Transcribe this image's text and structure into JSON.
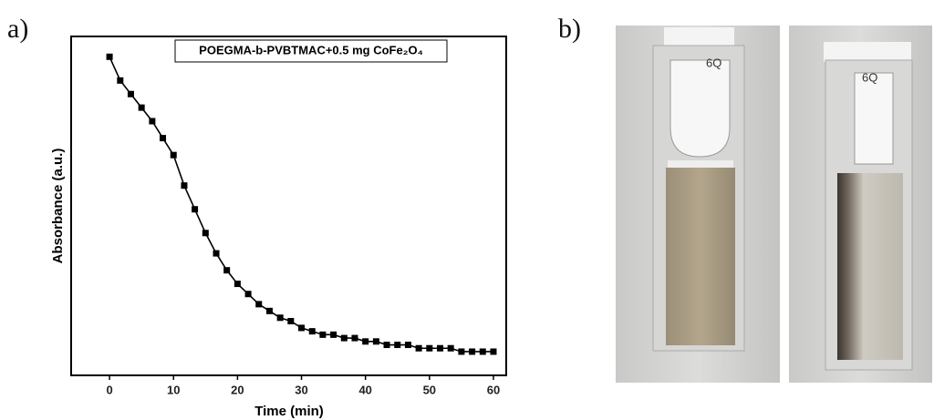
{
  "panel_labels": [
    "a)",
    "b)"
  ],
  "chart_data": {
    "type": "line",
    "xlabel": "Time (min)",
    "ylabel": "Absorbance (a.u.)",
    "x": [
      0,
      1.67,
      3.33,
      5,
      6.67,
      8.33,
      10,
      11.67,
      13.33,
      15,
      16.67,
      18.33,
      20,
      21.67,
      23.33,
      25,
      26.67,
      28.33,
      30,
      31.67,
      33.33,
      35,
      36.67,
      38.33,
      40,
      41.67,
      43.33,
      45,
      46.67,
      48.33,
      50,
      51.67,
      53.33,
      55,
      56.67,
      58.33,
      60
    ],
    "series": [
      {
        "name": "POEGMA-b-PVBTMAC+0.5 mg CoFe₂O₄",
        "color": "#000000",
        "values": [
          0.94,
          0.87,
          0.83,
          0.79,
          0.75,
          0.7,
          0.65,
          0.56,
          0.49,
          0.42,
          0.36,
          0.31,
          0.27,
          0.24,
          0.21,
          0.19,
          0.17,
          0.16,
          0.14,
          0.13,
          0.12,
          0.12,
          0.11,
          0.11,
          0.1,
          0.1,
          0.09,
          0.09,
          0.09,
          0.08,
          0.08,
          0.08,
          0.08,
          0.07,
          0.07,
          0.07,
          0.07
        ]
      }
    ],
    "xlim": [
      -6,
      62
    ],
    "ylim": [
      0,
      1
    ],
    "xticks": [
      0,
      10,
      20,
      30,
      40,
      50,
      60
    ]
  },
  "photos": [
    {
      "label": "6Q"
    },
    {
      "label": "6Q"
    }
  ]
}
